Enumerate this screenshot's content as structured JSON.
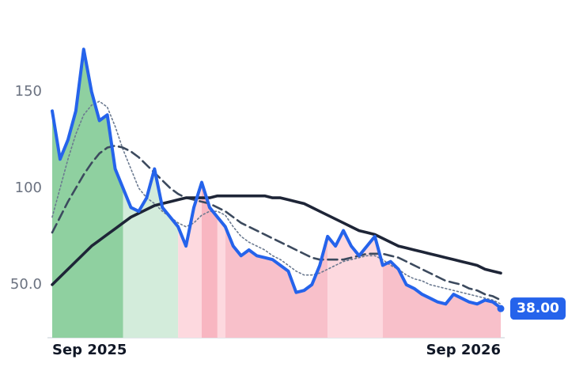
{
  "chart_data": {
    "type": "line",
    "categories": [
      "Sep 2025",
      null,
      null,
      null,
      null,
      null,
      null,
      null,
      null,
      null,
      null,
      null,
      null,
      null,
      null,
      null,
      null,
      null,
      null,
      null,
      null,
      null,
      null,
      null,
      null,
      null,
      null,
      null,
      null,
      null,
      null,
      null,
      null,
      null,
      null,
      null,
      null,
      null,
      null,
      null,
      null,
      null,
      null,
      null,
      null,
      null,
      null,
      null,
      null,
      null,
      null,
      null,
      null,
      null,
      null,
      null,
      null,
      "Sep 2026"
    ],
    "series": [
      {
        "color": "#2563eb",
        "dash": "solid",
        "width": 4,
        "area": true,
        "values": [
          140,
          115,
          125,
          140,
          172,
          150,
          135,
          138,
          110,
          100,
          90,
          88,
          95,
          110,
          90,
          85,
          80,
          70,
          90,
          103,
          90,
          85,
          80,
          70,
          65,
          68,
          65,
          64,
          63,
          60,
          57,
          46,
          47,
          50,
          60,
          75,
          70,
          78,
          70,
          65,
          70,
          75,
          60,
          62,
          58,
          50,
          48,
          45,
          43,
          41,
          40,
          45,
          43,
          41,
          40,
          42,
          41,
          38
        ],
        "value_labels": [
          null,
          null,
          null,
          null,
          null,
          null,
          null,
          null,
          null,
          null,
          null,
          null,
          null,
          null,
          null,
          null,
          null,
          null,
          null,
          null,
          null,
          null,
          null,
          null,
          null,
          null,
          null,
          null,
          null,
          null,
          null,
          null,
          null,
          null,
          null,
          null,
          null,
          null,
          null,
          null,
          null,
          null,
          null,
          null,
          null,
          null,
          null,
          null,
          null,
          null,
          null,
          null,
          null,
          null,
          null,
          null,
          null,
          "38.00"
        ]
      },
      {
        "color": "#6b7a90",
        "dash": "dotted",
        "width": 1.6,
        "values": [
          85,
          100,
          115,
          128,
          138,
          143,
          145,
          142,
          132,
          120,
          110,
          100,
          95,
          92,
          88,
          85,
          82,
          80,
          82,
          86,
          88,
          88,
          86,
          80,
          75,
          72,
          70,
          68,
          65,
          63,
          60,
          57,
          55,
          55,
          56,
          58,
          60,
          62,
          63,
          64,
          65,
          65,
          63,
          60,
          58,
          55,
          53,
          52,
          50,
          49,
          48,
          47,
          46,
          45,
          44,
          43,
          42,
          40
        ]
      },
      {
        "color": "#3c4a5e",
        "dash": "dashed",
        "width": 2.6,
        "values": [
          77,
          85,
          93,
          100,
          107,
          113,
          118,
          121,
          122,
          121,
          119,
          116,
          112,
          108,
          104,
          100,
          97,
          95,
          94,
          93,
          92,
          90,
          88,
          85,
          82,
          80,
          78,
          76,
          74,
          72,
          70,
          68,
          66,
          64,
          63,
          63,
          63,
          63,
          64,
          65,
          66,
          66,
          66,
          65,
          64,
          62,
          60,
          58,
          56,
          54,
          52,
          51,
          50,
          48,
          47,
          45,
          44,
          42
        ]
      },
      {
        "color": "#1e2537",
        "dash": "solid",
        "width": 3.6,
        "values": [
          50,
          54,
          58,
          62,
          66,
          70,
          73,
          76,
          79,
          82,
          85,
          87,
          89,
          91,
          92,
          93,
          94,
          95,
          95,
          95,
          95,
          96,
          96,
          96,
          96,
          96,
          96,
          96,
          95,
          95,
          94,
          93,
          92,
          90,
          88,
          86,
          84,
          82,
          80,
          78,
          77,
          76,
          74,
          72,
          70,
          69,
          68,
          67,
          66,
          65,
          64,
          63,
          62,
          61,
          60,
          58,
          57,
          56
        ]
      }
    ],
    "shading": [
      {
        "from": 0,
        "to": 9,
        "color": "#8fd0a0"
      },
      {
        "from": 9,
        "to": 16,
        "color": "#d3ecdb"
      },
      {
        "from": 16,
        "to": 19,
        "color": "#fdd9df"
      },
      {
        "from": 19,
        "to": 21,
        "color": "#f8b6c1"
      },
      {
        "from": 21,
        "to": 22,
        "color": "#fdd9df"
      },
      {
        "from": 22,
        "to": 35,
        "color": "#f8c0ca"
      },
      {
        "from": 35,
        "to": 42,
        "color": "#fdd9df"
      },
      {
        "from": 42,
        "to": 57,
        "color": "#f8c0ca"
      }
    ],
    "ylim": [
      22.5,
      185
    ],
    "yticks": [
      {
        "value": 50,
        "label": "50.0"
      },
      100,
      150
    ]
  }
}
